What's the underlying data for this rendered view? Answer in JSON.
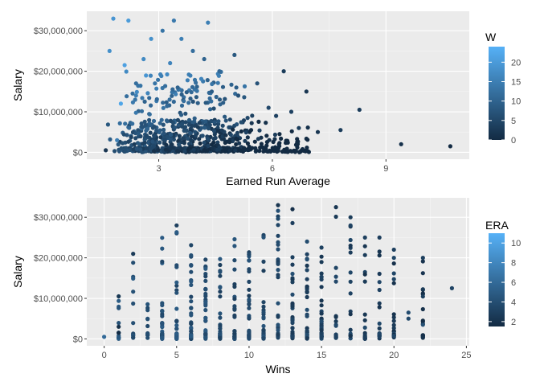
{
  "colors": {
    "panel": "#ebebeb",
    "grid_major": "#ffffff",
    "low": "#132b43",
    "high": "#56b1f7",
    "tick": "#4d4d4d"
  },
  "chart_data": [
    {
      "type": "scatter",
      "xlabel": "Earned Run Average",
      "ylabel": "Salary",
      "xlim": [
        1.1,
        11.2
      ],
      "ylim": [
        -1700000,
        34800000
      ],
      "x_ticks": [
        {
          "v": 3,
          "label": "3"
        },
        {
          "v": 6,
          "label": "6"
        },
        {
          "v": 9,
          "label": "9"
        }
      ],
      "y_ticks": [
        {
          "v": 0,
          "label": "$0"
        },
        {
          "v": 10000000,
          "label": "$10,000,000"
        },
        {
          "v": 20000000,
          "label": "$20,000,000"
        },
        {
          "v": 30000000,
          "label": "$30,000,000"
        }
      ],
      "color_by": "W",
      "legend": {
        "title": "W",
        "min": 0,
        "max": 24,
        "ticks": [
          0,
          5,
          10,
          15,
          20
        ]
      },
      "grid": true,
      "point_count_estimate": 900,
      "points": [
        [
          1.8,
          33000000,
          19
        ],
        [
          2.2,
          32500000,
          20
        ],
        [
          3.4,
          32500000,
          14
        ],
        [
          4.3,
          32000000,
          15
        ],
        [
          2.8,
          28000000,
          18
        ],
        [
          3.6,
          28000000,
          15
        ],
        [
          3.1,
          30000000,
          13
        ],
        [
          3.9,
          25000000,
          12
        ],
        [
          1.7,
          25000000,
          18
        ],
        [
          2.1,
          21500000,
          21
        ],
        [
          2.6,
          23000000,
          17
        ],
        [
          5.0,
          24000000,
          8
        ],
        [
          4.2,
          23000000,
          10
        ],
        [
          3.3,
          22000000,
          16
        ],
        [
          4.6,
          20000000,
          11
        ],
        [
          6.3,
          20000000,
          3
        ],
        [
          5.6,
          17000000,
          7
        ],
        [
          6.9,
          15000000,
          2
        ],
        [
          7.8,
          5500000,
          3
        ],
        [
          8.3,
          10500000,
          3
        ],
        [
          9.4,
          2000000,
          1
        ],
        [
          10.7,
          1500000,
          0
        ],
        [
          7.2,
          5000000,
          2
        ],
        [
          6.5,
          10000000,
          4
        ],
        [
          1.6,
          500000,
          2
        ],
        [
          1.9,
          3000000,
          15
        ],
        [
          2.0,
          12000000,
          22
        ],
        [
          2.4,
          17000000,
          12
        ],
        [
          2.9,
          17000000,
          13
        ],
        [
          3.5,
          16000000,
          10
        ],
        [
          4.4,
          15000000,
          9
        ],
        [
          5.1,
          14000000,
          7
        ],
        [
          5.9,
          11000000,
          5
        ],
        [
          6.1,
          9000000,
          4
        ],
        [
          6.7,
          6000000,
          3
        ],
        [
          6.9,
          500000,
          0
        ]
      ]
    },
    {
      "type": "scatter",
      "xlabel": "Wins",
      "ylabel": "Salary",
      "xlim": [
        -1.2,
        25.2
      ],
      "ylim": [
        -1700000,
        34800000
      ],
      "x_ticks": [
        {
          "v": 0,
          "label": "0"
        },
        {
          "v": 5,
          "label": "5"
        },
        {
          "v": 10,
          "label": "10"
        },
        {
          "v": 15,
          "label": "15"
        },
        {
          "v": 20,
          "label": "20"
        },
        {
          "v": 25,
          "label": "25"
        }
      ],
      "y_ticks": [
        {
          "v": 0,
          "label": "$0"
        },
        {
          "v": 10000000,
          "label": "$10,000,000"
        },
        {
          "v": 20000000,
          "label": "$20,000,000"
        },
        {
          "v": 30000000,
          "label": "$30,000,000"
        }
      ],
      "color_by": "ERA",
      "legend": {
        "title": "ERA",
        "min": 1.5,
        "max": 11,
        "ticks": [
          2,
          4,
          6,
          8,
          10
        ]
      },
      "grid": true,
      "max_salary_by_wins": [
        [
          0,
          500000
        ],
        [
          1,
          10500000
        ],
        [
          2,
          21000000
        ],
        [
          3,
          9500000
        ],
        [
          4,
          25000000
        ],
        [
          5,
          28000000
        ],
        [
          6,
          23500000
        ],
        [
          7,
          20000000
        ],
        [
          8,
          22000000
        ],
        [
          9,
          25000000
        ],
        [
          10,
          22000000
        ],
        [
          11,
          26000000
        ],
        [
          12,
          33000000
        ],
        [
          13,
          32000000
        ],
        [
          14,
          26000000
        ],
        [
          15,
          23000000
        ],
        [
          16,
          32500000
        ],
        [
          17,
          30000000
        ],
        [
          18,
          25000000
        ],
        [
          19,
          25000000
        ],
        [
          20,
          22000000
        ],
        [
          21,
          6500000
        ],
        [
          22,
          20000000
        ],
        [
          24,
          12500000
        ]
      ],
      "points": [
        [
          12,
          33000000,
          2.2
        ],
        [
          13,
          32000000,
          1.8
        ],
        [
          16,
          32500000,
          2.3
        ],
        [
          17,
          30000000,
          2.6
        ],
        [
          5,
          28000000,
          2.9
        ],
        [
          17,
          28000000,
          3.2
        ],
        [
          18,
          25000000,
          3.0
        ],
        [
          19,
          25000000,
          2.8
        ],
        [
          20,
          22000000,
          2.9
        ],
        [
          20,
          20000000,
          3.4
        ],
        [
          22,
          20000000,
          2.9
        ],
        [
          24,
          12500000,
          3.3
        ],
        [
          21,
          6500000,
          3.8
        ],
        [
          21,
          5000000,
          3.5
        ],
        [
          22,
          3500000,
          4.1
        ],
        [
          0,
          500000,
          6.0
        ],
        [
          1,
          10500000,
          2.4
        ],
        [
          1,
          1500000,
          1.6
        ],
        [
          1,
          3000000,
          1.7
        ],
        [
          2,
          21000000,
          2.6
        ]
      ]
    }
  ]
}
